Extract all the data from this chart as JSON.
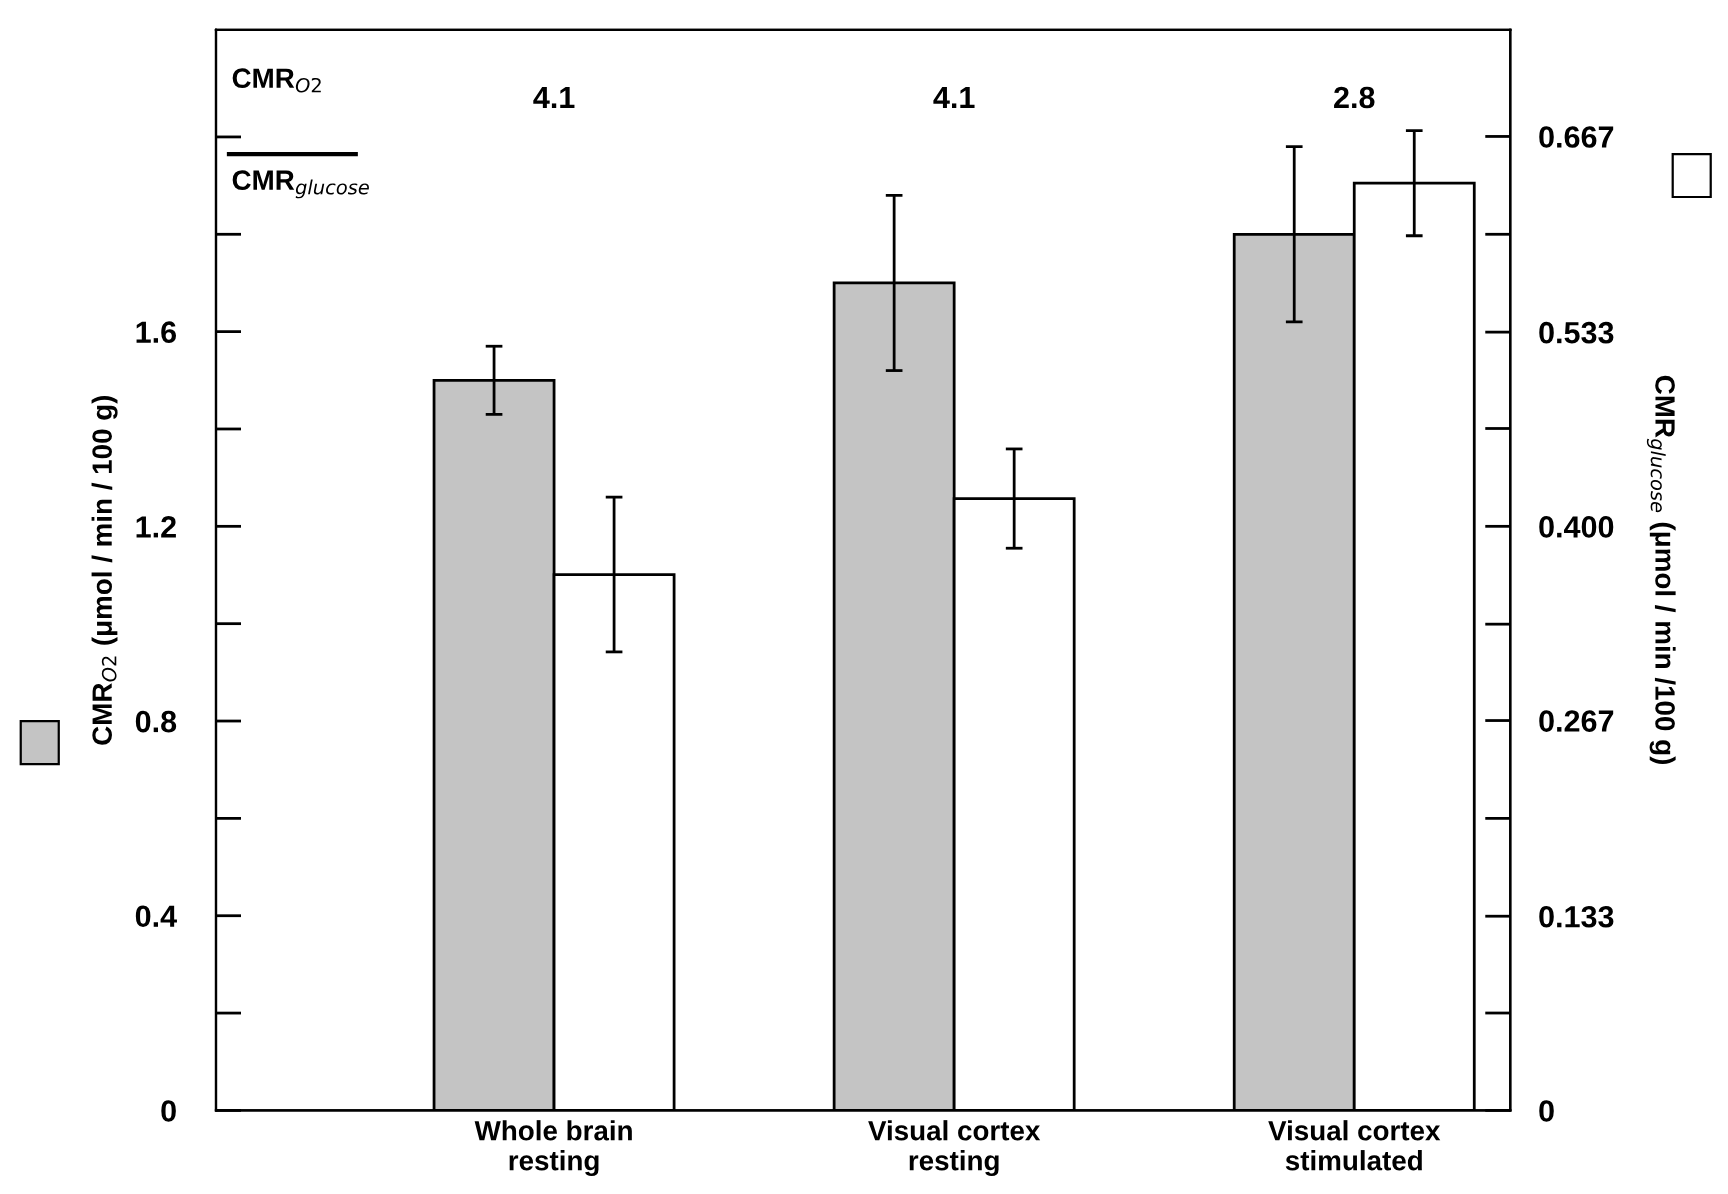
{
  "chart_data": {
    "type": "bar",
    "categories": [
      "Whole brain\nresting",
      "Visual cortex\nresting",
      "Visual cortex\nstimulated"
    ],
    "series": [
      {
        "color": "#c4c4c4",
        "values": [
          1.5,
          1.7,
          1.8
        ],
        "errors": [
          0.07,
          0.18,
          0.18
        ]
      },
      {
        "color": "#ffffff",
        "values": [
          0.367,
          0.419,
          0.635
        ],
        "errors": [
          0.053,
          0.034,
          0.036
        ],
        "axis": "y2"
      }
    ],
    "ylabel": "CMR$_{O2}$ (μmol / min / 100 g)",
    "y2label": "CMR$_{glucose}$ (μmol / min /100 g)",
    "ylim": [
      0,
      2.22
    ],
    "yticks": [
      0,
      {
        "value": 0.2,
        "label": null
      },
      0.4,
      {
        "value": 0.6,
        "label": null
      },
      0.8,
      {
        "value": 1.0,
        "label": null
      },
      1.2,
      {
        "value": 1.4,
        "label": null
      },
      1.6,
      {
        "value": 1.8,
        "label": null
      },
      {
        "value": 2.0,
        "label": null
      }
    ],
    "y2lim": [
      0,
      0.74
    ],
    "y2ticks": [
      0,
      {
        "value": 0.0667,
        "label": null
      },
      0.133,
      {
        "value": 0.2,
        "label": null
      },
      0.267,
      {
        "value": 0.333,
        "label": null
      },
      {
        "value": 0.4,
        "label": "0.400"
      },
      {
        "value": 0.467,
        "label": null
      },
      0.533,
      {
        "value": 0.6,
        "label": null
      },
      0.667
    ],
    "annotations": [
      "CMR$_{O2}$",
      "CMR$_{glucose}$",
      "4.1",
      "4.1",
      "2.8"
    ],
    "grid": false,
    "legend": false
  }
}
